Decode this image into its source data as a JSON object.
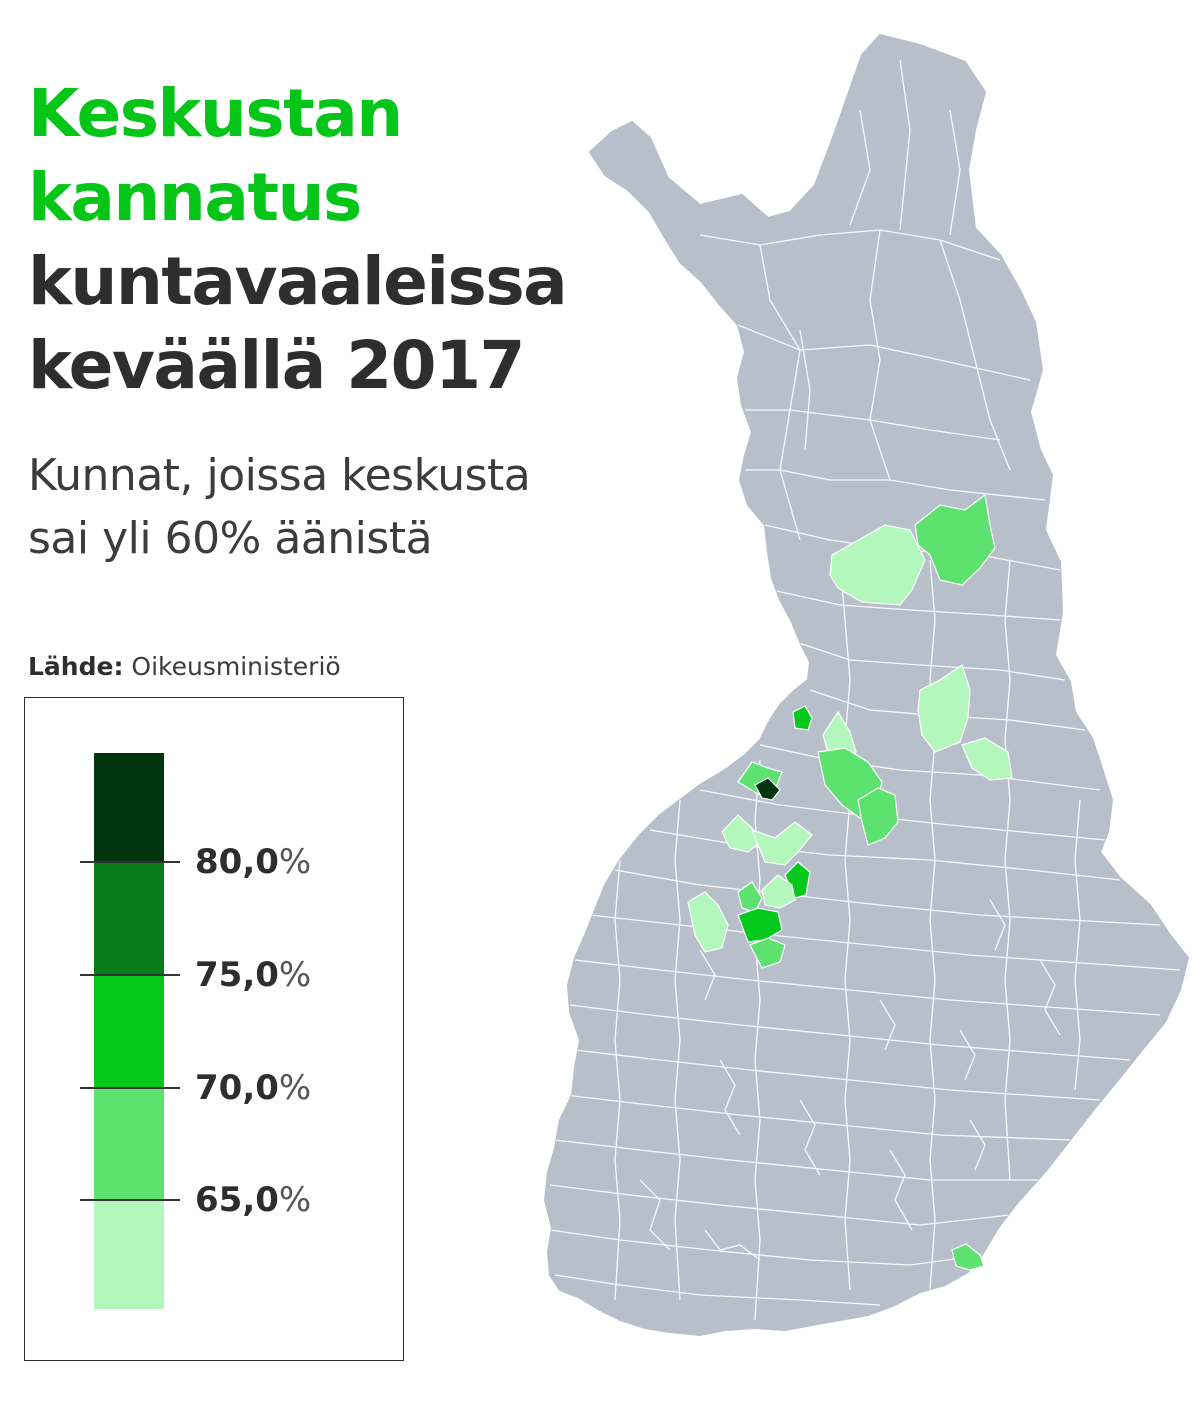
{
  "header": {
    "title_line1": "Keskustan",
    "title_line2": "kannatus",
    "title_line3": "kuntavaaleissa",
    "title_line4": "keväällä 2017",
    "subtitle_line1": "Kunnat, joissa keskusta",
    "subtitle_line2": "sai yli 60% äänistä"
  },
  "source": {
    "label": "Lähde:",
    "value": "Oikeusministeriö"
  },
  "legend": {
    "colors": [
      "#b3f7bd",
      "#5ee26f",
      "#04c81c",
      "#067c1a",
      "#003510"
    ],
    "thresholds": [
      {
        "number": "80,0",
        "unit": "%"
      },
      {
        "number": "75,0",
        "unit": "%"
      },
      {
        "number": "70,0",
        "unit": "%"
      },
      {
        "number": "65,0",
        "unit": "%"
      }
    ]
  },
  "map_style": {
    "land_color": "#b7bfcb",
    "border_color": "#ffffff",
    "highlight_outline": "#ffffff"
  },
  "municipalities": [
    {
      "class": "60–65%",
      "color": "#b3f7bd"
    },
    {
      "class": "65–70%",
      "color": "#5ee26f"
    },
    {
      "class": "60–65%",
      "color": "#b3f7bd"
    },
    {
      "class": "60–65%",
      "color": "#b3f7bd"
    },
    {
      "class": "70–75%",
      "color": "#04c81c"
    },
    {
      "class": "60–65%",
      "color": "#b3f7bd"
    },
    {
      "class": "65–70%",
      "color": "#5ee26f"
    },
    {
      "class": "65–70%",
      "color": "#5ee26f"
    },
    {
      "class": "65–70%",
      "color": "#5ee26f"
    },
    {
      "class": "over 80%",
      "color": "#003510"
    },
    {
      "class": "60–65%",
      "color": "#b3f7bd"
    },
    {
      "class": "60–65%",
      "color": "#b3f7bd"
    },
    {
      "class": "70–75%",
      "color": "#04c81c"
    },
    {
      "class": "60–65%",
      "color": "#b3f7bd"
    },
    {
      "class": "65–70%",
      "color": "#5ee26f"
    },
    {
      "class": "60–65%",
      "color": "#b3f7bd"
    },
    {
      "class": "70–75%",
      "color": "#04c81c"
    },
    {
      "class": "65–70%",
      "color": "#5ee26f"
    },
    {
      "class": "65–70%",
      "color": "#5ee26f"
    }
  ]
}
